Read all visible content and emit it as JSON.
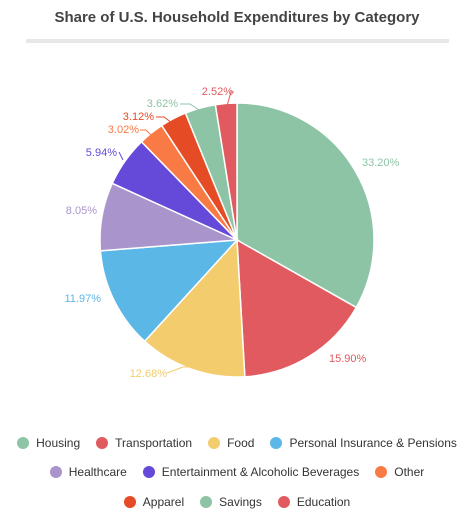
{
  "chart_data": {
    "type": "pie",
    "title": "Share of U.S. Household Expenditures by Category",
    "unit": "%",
    "legend_position": "bottom",
    "slices": [
      {
        "label": "Housing",
        "value": 33.2,
        "value_label": "33.20%",
        "color": "#8dc4a5"
      },
      {
        "label": "Transportation",
        "value": 15.9,
        "value_label": "15.90%",
        "color": "#e05a5f"
      },
      {
        "label": "Food",
        "value": 12.68,
        "value_label": "12.68%",
        "color": "#f2cc6d"
      },
      {
        "label": "Personal Insurance & Pensions",
        "value": 11.97,
        "value_label": "11.97%",
        "color": "#5bb7e6"
      },
      {
        "label": "Healthcare",
        "value": 8.05,
        "value_label": "8.05%",
        "color": "#a995cc"
      },
      {
        "label": "Entertainment & Alcoholic Beverages",
        "value": 5.94,
        "value_label": "5.94%",
        "color": "#6549d8"
      },
      {
        "label": "Other",
        "value": 3.02,
        "value_label": "3.02%",
        "color": "#fa7a45"
      },
      {
        "label": "Apparel",
        "value": 3.12,
        "value_label": "3.12%",
        "color": "#e54b24"
      },
      {
        "label": "Savings",
        "value": 3.62,
        "value_label": "3.62%",
        "color": "#8dc4a5"
      },
      {
        "label": "Education",
        "value": 2.52,
        "value_label": "2.52%",
        "color": "#e05a5f"
      }
    ],
    "legend_rows": [
      [
        "Housing",
        "Transportation",
        "Food",
        "Personal Insurance & Pensions"
      ],
      [
        "Healthcare",
        "Entertainment & Alcoholic Beverages",
        "Other"
      ],
      [
        "Apparel",
        "Savings",
        "Education"
      ]
    ]
  }
}
